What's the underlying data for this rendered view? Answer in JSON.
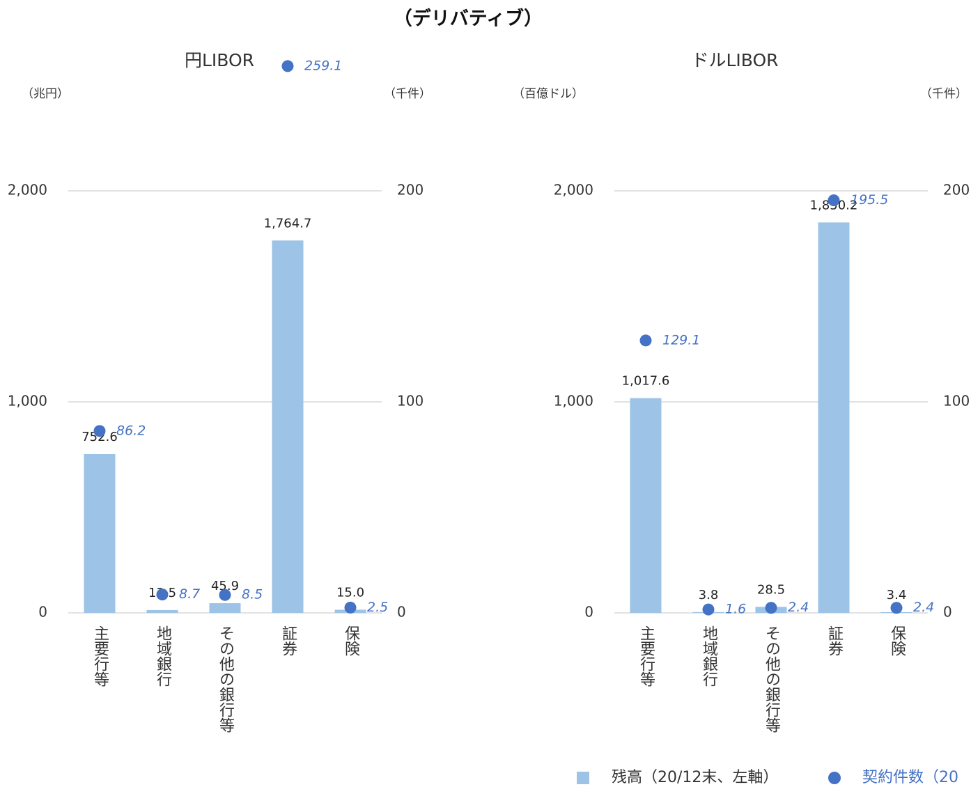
{
  "title": "（デリバティブ）",
  "chart_data": [
    {
      "type": "bar",
      "title": "円LIBOR",
      "y_label": "（兆円）",
      "y2_label": "（千件）",
      "categories": [
        "主要行等",
        "地域銀行",
        "その他の銀行等",
        "証券",
        "保険"
      ],
      "ylim": [
        0,
        2340
      ],
      "yticks": [
        0,
        {
          "value": 1000,
          "label": "1,000"
        },
        {
          "value": 2000,
          "label": "2,000"
        }
      ],
      "y2lim": [
        0,
        234
      ],
      "y2ticks": [
        0,
        100,
        200
      ],
      "grid": true,
      "series": [
        {
          "name": "残高（20/12末、左軸）",
          "color": "#9dc3e6",
          "values": [
            752.6,
            13.5,
            45.9,
            1764.7,
            15.0
          ],
          "value_labels": [
            "752.6",
            "13.5",
            "45.9",
            "1,764.7",
            "15.0"
          ]
        },
        {
          "name": "契約件数（20",
          "type": "scatter",
          "axis": "y2",
          "color": "#4472c4",
          "values": [
            86.2,
            8.7,
            8.5,
            259.1,
            2.5
          ]
        }
      ]
    },
    {
      "type": "bar",
      "title": "ドルLIBOR",
      "y_label": "（百億ドル）",
      "y2_label": "（千件）",
      "categories": [
        "主要行等",
        "地域銀行",
        "その他の銀行等",
        "証券",
        "保険"
      ],
      "ylim": [
        0,
        2340
      ],
      "yticks": [
        0,
        {
          "value": 1000,
          "label": "1,000"
        },
        {
          "value": 2000,
          "label": "2,000"
        }
      ],
      "y2lim": [
        0,
        234
      ],
      "y2ticks": [
        0,
        100,
        200
      ],
      "grid": true,
      "series": [
        {
          "color": "#9dc3e6",
          "values": [
            1017.6,
            3.8,
            28.5,
            1850.2,
            3.4
          ],
          "value_labels": [
            "1,017.6",
            "3.8",
            "28.5",
            "1,850.2",
            "3.4"
          ]
        },
        {
          "type": "scatter",
          "axis": "y2",
          "color": "#4472c4",
          "values": [
            129.1,
            1.6,
            2.4,
            195.5,
            2.4
          ]
        }
      ]
    }
  ]
}
